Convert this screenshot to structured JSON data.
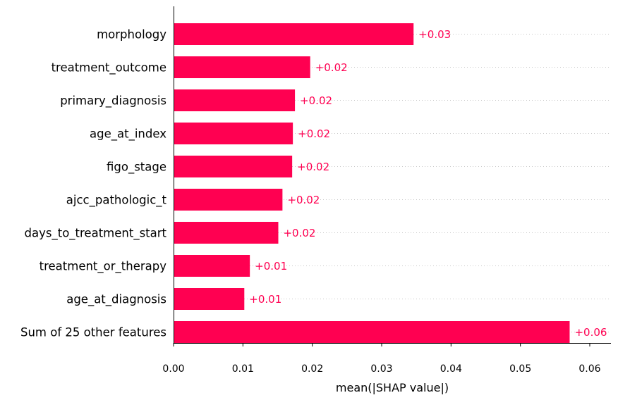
{
  "chart_data": {
    "type": "bar",
    "orientation": "horizontal",
    "title": "",
    "xlabel": "mean(|SHAP value|)",
    "ylabel": "",
    "xlim": [
      0,
      0.0628
    ],
    "xticks": [
      0.0,
      0.01,
      0.02,
      0.03,
      0.04,
      0.05,
      0.06
    ],
    "xtick_labels": [
      "0.00",
      "0.01",
      "0.02",
      "0.03",
      "0.04",
      "0.05",
      "0.06"
    ],
    "categories": [
      "morphology",
      "treatment_outcome",
      "primary_diagnosis",
      "age_at_index",
      "figo_stage",
      "ajcc_pathologic_t",
      "days_to_treatment_start",
      "treatment_or_therapy",
      "age_at_diagnosis",
      "Sum of 25 other features"
    ],
    "values": [
      0.0346,
      0.0197,
      0.0175,
      0.0172,
      0.0171,
      0.0157,
      0.0151,
      0.011,
      0.0102,
      0.0571
    ],
    "data_labels": [
      "+0.03",
      "+0.02",
      "+0.02",
      "+0.02",
      "+0.02",
      "+0.02",
      "+0.02",
      "+0.01",
      "+0.01",
      "+0.06"
    ],
    "bar_color": "#ff0051",
    "label_color": "#ff0051",
    "grid": "dotted row guides",
    "legend": "none"
  }
}
